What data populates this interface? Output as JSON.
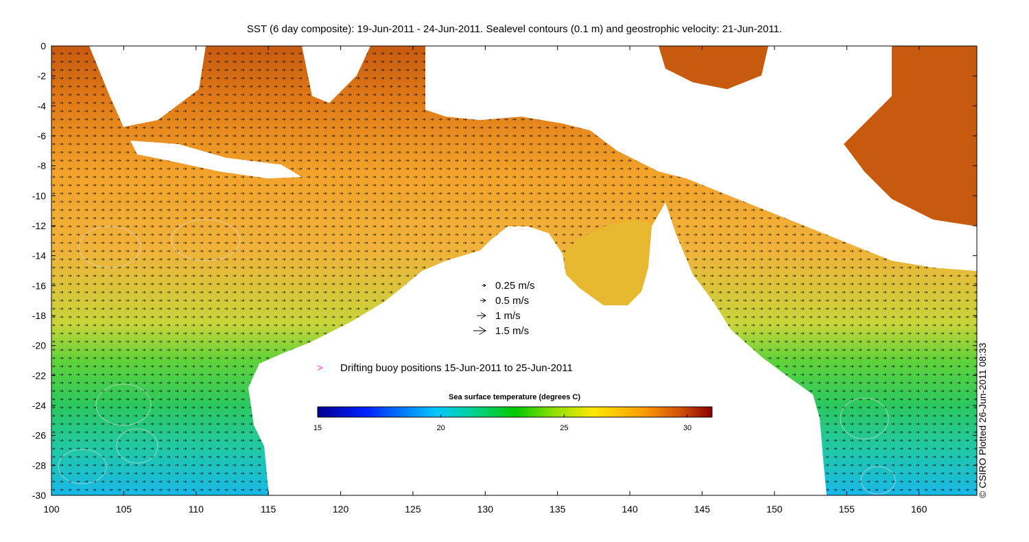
{
  "title": "SST (6 day composite): 19-Jun-2011 - 24-Jun-2011. Sealevel contours (0.1 m) and geostrophic velocity: 21-Jun-2011.",
  "credit": "© CSIRO Plotted 26-Jun-2011 08:33",
  "axes": {
    "x_range": [
      100,
      164
    ],
    "y_range": [
      -30,
      0
    ],
    "x_ticks": [
      100,
      105,
      110,
      115,
      120,
      125,
      130,
      135,
      140,
      145,
      150,
      155,
      160
    ],
    "y_ticks": [
      0,
      -2,
      -4,
      -6,
      -8,
      -10,
      -12,
      -14,
      -16,
      -18,
      -20,
      -22,
      -24,
      -26,
      -28,
      -30
    ]
  },
  "velocity_legend": [
    {
      "speed": 0.25,
      "label": "0.25 m/s"
    },
    {
      "speed": 0.5,
      "label": "0.5 m/s"
    },
    {
      "speed": 1,
      "label": "1 m/s"
    },
    {
      "speed": 1.5,
      "label": "1.5 m/s"
    }
  ],
  "buoy_legend": {
    "symbol": ">",
    "label": "Drifting buoy positions 15-Jun-2011 to 25-Jun-2011",
    "color": "#ff33ff"
  },
  "colorbar": {
    "label": "Sea surface temperature (degrees C)",
    "range": [
      15,
      31
    ],
    "ticks": [
      15,
      20,
      25,
      30
    ],
    "colormap": [
      "#00008f",
      "#0020ff",
      "#00c8ff",
      "#00d28c",
      "#00c800",
      "#90e000",
      "#ffe800",
      "#ffa000",
      "#d05000",
      "#8a0000"
    ]
  }
}
